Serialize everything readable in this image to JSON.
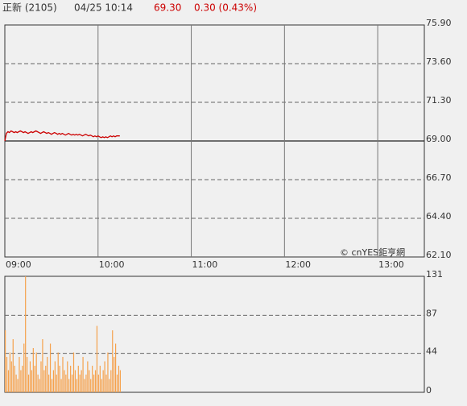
{
  "header": {
    "name": "正新 (2105)",
    "time": "04/25 10:14",
    "price": "69.30",
    "change": "0.30 (0.43%)"
  },
  "chart_data": [
    {
      "type": "line",
      "color": "#cc0000",
      "baseline": 69,
      "annotation": "© cnYES鉅亨網",
      "xlim": [
        "09:00",
        "13:30"
      ],
      "xticks": [
        "09:00",
        "10:00",
        "11:00",
        "12:00",
        "13:00"
      ],
      "ylim": [
        62.1,
        75.9
      ],
      "yticks": [
        {
          "value": 62.1,
          "label": "62.10"
        },
        {
          "value": 64.4,
          "label": "64.40"
        },
        {
          "value": 66.7,
          "label": "66.70"
        },
        {
          "value": 69,
          "label": "69.00"
        },
        {
          "value": 71.3,
          "label": "71.30"
        },
        {
          "value": 73.6,
          "label": "73.60"
        },
        {
          "value": 75.9,
          "label": "75.90"
        }
      ],
      "x": [
        "09:00",
        "09:01",
        "09:02",
        "09:03",
        "09:04",
        "09:05",
        "09:06",
        "09:07",
        "09:08",
        "09:09",
        "09:10",
        "09:11",
        "09:12",
        "09:13",
        "09:14",
        "09:15",
        "09:16",
        "09:17",
        "09:18",
        "09:19",
        "09:20",
        "09:21",
        "09:22",
        "09:23",
        "09:24",
        "09:25",
        "09:26",
        "09:27",
        "09:28",
        "09:29",
        "09:30",
        "09:31",
        "09:32",
        "09:33",
        "09:34",
        "09:35",
        "09:36",
        "09:37",
        "09:38",
        "09:39",
        "09:40",
        "09:41",
        "09:42",
        "09:43",
        "09:44",
        "09:45",
        "09:46",
        "09:47",
        "09:48",
        "09:49",
        "09:50",
        "09:51",
        "09:52",
        "09:53",
        "09:54",
        "09:55",
        "09:56",
        "09:57",
        "09:58",
        "09:59",
        "10:00",
        "10:01",
        "10:02",
        "10:03",
        "10:04",
        "10:05",
        "10:06",
        "10:07",
        "10:08",
        "10:09",
        "10:10",
        "10:11",
        "10:12",
        "10:13",
        "10:14"
      ],
      "values": [
        69,
        69.45,
        69.55,
        69.5,
        69.6,
        69.55,
        69.5,
        69.55,
        69.5,
        69.55,
        69.6,
        69.55,
        69.5,
        69.55,
        69.5,
        69.45,
        69.5,
        69.55,
        69.5,
        69.55,
        69.6,
        69.55,
        69.5,
        69.45,
        69.5,
        69.55,
        69.5,
        69.45,
        69.5,
        69.45,
        69.4,
        69.45,
        69.5,
        69.45,
        69.4,
        69.45,
        69.4,
        69.45,
        69.4,
        69.35,
        69.4,
        69.45,
        69.4,
        69.35,
        69.4,
        69.35,
        69.4,
        69.35,
        69.4,
        69.35,
        69.3,
        69.35,
        69.4,
        69.35,
        69.3,
        69.35,
        69.3,
        69.25,
        69.3,
        69.25,
        69.3,
        69.25,
        69.2,
        69.25,
        69.2,
        69.25,
        69.2,
        69.25,
        69.3,
        69.25,
        69.3,
        69.25,
        69.3,
        69.3,
        69.3
      ]
    },
    {
      "type": "bar",
      "color": "#f5a14c",
      "xlim": [
        "09:00",
        "13:30"
      ],
      "ylim": [
        0,
        131
      ],
      "yticks": [
        0,
        44,
        87,
        131
      ],
      "x": [
        "09:00",
        "09:01",
        "09:02",
        "09:03",
        "09:04",
        "09:05",
        "09:06",
        "09:07",
        "09:08",
        "09:09",
        "09:10",
        "09:11",
        "09:12",
        "09:13",
        "09:14",
        "09:15",
        "09:16",
        "09:17",
        "09:18",
        "09:19",
        "09:20",
        "09:21",
        "09:22",
        "09:23",
        "09:24",
        "09:25",
        "09:26",
        "09:27",
        "09:28",
        "09:29",
        "09:30",
        "09:31",
        "09:32",
        "09:33",
        "09:34",
        "09:35",
        "09:36",
        "09:37",
        "09:38",
        "09:39",
        "09:40",
        "09:41",
        "09:42",
        "09:43",
        "09:44",
        "09:45",
        "09:46",
        "09:47",
        "09:48",
        "09:49",
        "09:50",
        "09:51",
        "09:52",
        "09:53",
        "09:54",
        "09:55",
        "09:56",
        "09:57",
        "09:58",
        "09:59",
        "10:00",
        "10:01",
        "10:02",
        "10:03",
        "10:04",
        "10:05",
        "10:06",
        "10:07",
        "10:08",
        "10:09",
        "10:10",
        "10:11",
        "10:12",
        "10:13",
        "10:14"
      ],
      "values": [
        70,
        40,
        25,
        45,
        35,
        60,
        30,
        20,
        15,
        40,
        25,
        30,
        55,
        131,
        40,
        20,
        35,
        25,
        50,
        30,
        45,
        20,
        15,
        35,
        60,
        25,
        30,
        40,
        20,
        55,
        15,
        25,
        35,
        20,
        45,
        30,
        15,
        40,
        25,
        20,
        35,
        15,
        30,
        20,
        45,
        25,
        15,
        30,
        20,
        25,
        40,
        15,
        20,
        35,
        25,
        15,
        30,
        20,
        25,
        75,
        20,
        30,
        15,
        25,
        35,
        20,
        45,
        15,
        25,
        70,
        40,
        55,
        20,
        30,
        25
      ]
    }
  ]
}
